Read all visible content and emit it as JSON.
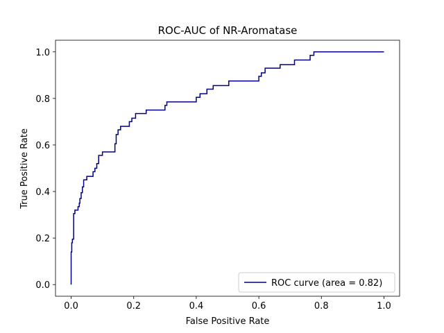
{
  "chart_data": {
    "type": "line",
    "title": "ROC-AUC of NR-Aromatase",
    "xlabel": "False Positive Rate",
    "ylabel": "True Positive Rate",
    "xlim": [
      -0.05,
      1.05
    ],
    "ylim": [
      -0.05,
      1.05
    ],
    "xticks": [
      0.0,
      0.2,
      0.4,
      0.6,
      0.8,
      1.0
    ],
    "yticks": [
      0.0,
      0.2,
      0.4,
      0.6,
      0.8,
      1.0
    ],
    "xtick_labels": [
      "0.0",
      "0.2",
      "0.4",
      "0.6",
      "0.8",
      "1.0"
    ],
    "ytick_labels": [
      "0.0",
      "0.2",
      "0.4",
      "0.6",
      "0.8",
      "1.0"
    ],
    "grid": false,
    "legend_position": "lower-right",
    "series": [
      {
        "name": "ROC curve (area = 0.82)",
        "color": "#000080",
        "x": [
          0.0,
          0.0,
          0.002,
          0.002,
          0.004,
          0.004,
          0.008,
          0.008,
          0.012,
          0.012,
          0.022,
          0.022,
          0.026,
          0.026,
          0.028,
          0.028,
          0.032,
          0.032,
          0.036,
          0.036,
          0.04,
          0.04,
          0.05,
          0.05,
          0.07,
          0.07,
          0.076,
          0.076,
          0.082,
          0.082,
          0.088,
          0.088,
          0.1,
          0.1,
          0.14,
          0.14,
          0.144,
          0.144,
          0.15,
          0.15,
          0.158,
          0.158,
          0.186,
          0.186,
          0.194,
          0.194,
          0.206,
          0.206,
          0.24,
          0.24,
          0.3,
          0.3,
          0.306,
          0.306,
          0.4,
          0.4,
          0.412,
          0.412,
          0.434,
          0.434,
          0.454,
          0.454,
          0.504,
          0.504,
          0.6,
          0.6,
          0.608,
          0.608,
          0.62,
          0.62,
          0.668,
          0.668,
          0.714,
          0.714,
          0.764,
          0.764,
          0.776,
          0.776,
          1.0
        ],
        "y": [
          0.0,
          0.14,
          0.14,
          0.18,
          0.18,
          0.195,
          0.195,
          0.305,
          0.305,
          0.32,
          0.32,
          0.335,
          0.335,
          0.35,
          0.35,
          0.37,
          0.37,
          0.395,
          0.395,
          0.42,
          0.42,
          0.45,
          0.45,
          0.465,
          0.465,
          0.485,
          0.485,
          0.5,
          0.5,
          0.52,
          0.52,
          0.555,
          0.555,
          0.57,
          0.57,
          0.605,
          0.605,
          0.645,
          0.645,
          0.665,
          0.665,
          0.68,
          0.68,
          0.7,
          0.7,
          0.715,
          0.715,
          0.735,
          0.735,
          0.75,
          0.75,
          0.77,
          0.77,
          0.785,
          0.785,
          0.805,
          0.805,
          0.82,
          0.82,
          0.84,
          0.84,
          0.855,
          0.855,
          0.875,
          0.875,
          0.895,
          0.895,
          0.91,
          0.91,
          0.93,
          0.93,
          0.945,
          0.945,
          0.965,
          0.965,
          0.985,
          0.985,
          1.0,
          1.0
        ]
      }
    ]
  }
}
